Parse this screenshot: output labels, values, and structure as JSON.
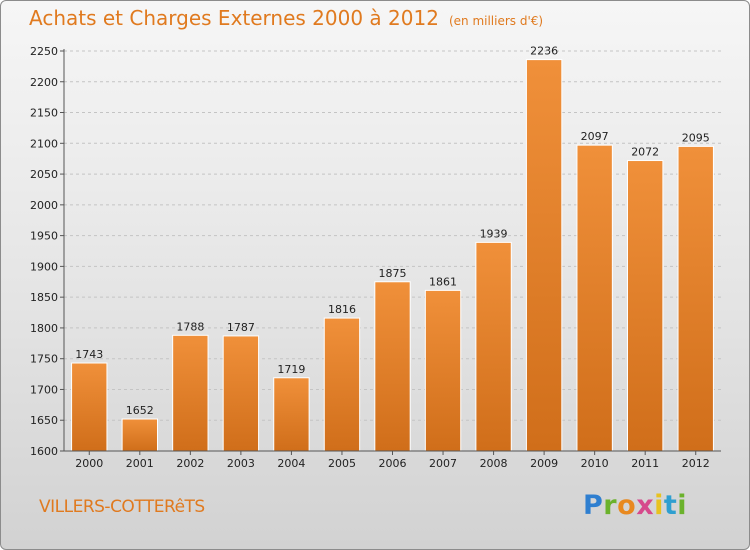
{
  "chart_data": {
    "type": "bar",
    "title": "Achats et Charges Externes 2000 à 2012",
    "subtitle": "(en milliers d'€)",
    "categories": [
      "2000",
      "2001",
      "2002",
      "2003",
      "2004",
      "2005",
      "2006",
      "2007",
      "2008",
      "2009",
      "2010",
      "2011",
      "2012"
    ],
    "values": [
      1743,
      1652,
      1788,
      1787,
      1719,
      1816,
      1875,
      1861,
      1939,
      2236,
      2097,
      2072,
      2095
    ],
    "ylim": [
      1600,
      2250
    ],
    "yticks": [
      1600,
      1650,
      1700,
      1750,
      1800,
      1850,
      1900,
      1950,
      2000,
      2050,
      2100,
      2150,
      2200,
      2250
    ],
    "grid": true,
    "bar_color": "#f0903a",
    "bar_color_dark": "#d06e1a",
    "title_color": "#e07a1f"
  },
  "location_label": "VILLERS-COTTERêTS",
  "logo": {
    "letters": [
      "P",
      "r",
      "o",
      "x",
      "i",
      "t",
      "i"
    ],
    "colors": [
      "#2f7fd0",
      "#6bb22c",
      "#e8891f",
      "#d64a8c",
      "#e8c21f",
      "#2f9fd0",
      "#6bb22c"
    ]
  }
}
